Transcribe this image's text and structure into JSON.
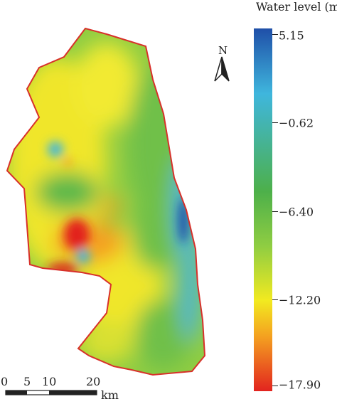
{
  "legend": {
    "title": "Water level (m)",
    "ticks": [
      "5.15",
      "−0.62",
      "−6.40",
      "−12.20",
      "−17.90"
    ],
    "colors": {
      "max": "#1f4fa8",
      "upper": "#3fb6dd",
      "mid": "#4db04a",
      "lower": "#f2ea20",
      "min": "#e2241f"
    }
  },
  "north_arrow": {
    "label": "N"
  },
  "scale_bar": {
    "labels": [
      "0",
      "5",
      "10",
      "20"
    ],
    "unit": "km"
  },
  "boundary_color": "#d8302a"
}
